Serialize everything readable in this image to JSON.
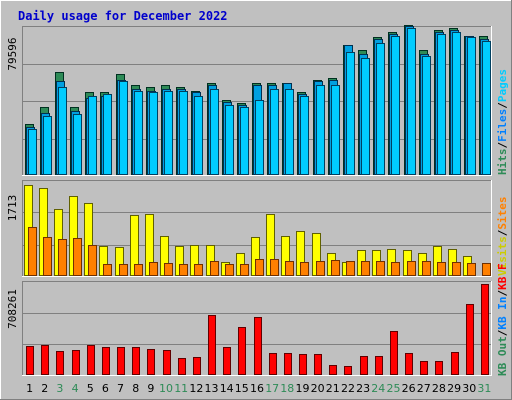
{
  "title": "Daily usage for December 2022",
  "colors": {
    "background": "#c0c0c0",
    "hits": "#00ccff",
    "files": "#00a0e0",
    "pages": "#2e8b57",
    "visits": "#ffff00",
    "sites": "#ff8000",
    "kbytes": "#ff0000",
    "title": "#0000cc",
    "weekday_label": "#000000",
    "weekend_label": "#2e8b57"
  },
  "legends": {
    "panel1": [
      {
        "text": "Hits",
        "color": "#2e8b57"
      },
      {
        "text": "/",
        "color": "#000000"
      },
      {
        "text": "Files",
        "color": "#0080ff"
      },
      {
        "text": "/",
        "color": "#000000"
      },
      {
        "text": "Pages",
        "color": "#00ccff"
      }
    ],
    "panel2": [
      {
        "text": "Visits",
        "color": "#cccc00"
      },
      {
        "text": "/",
        "color": "#000000"
      },
      {
        "text": "Sites",
        "color": "#ff8000"
      }
    ],
    "panel3": [
      {
        "text": "KB Out",
        "color": "#2e8b57"
      },
      {
        "text": "/",
        "color": "#000000"
      },
      {
        "text": "KB In",
        "color": "#0080ff"
      },
      {
        "text": "/",
        "color": "#000000"
      },
      {
        "text": "KB F",
        "color": "#ff0000"
      }
    ]
  },
  "chart_data": {
    "type": "bar",
    "title": "Daily usage for December 2022",
    "categories": [
      "1",
      "2",
      "3",
      "4",
      "5",
      "6",
      "7",
      "8",
      "9",
      "10",
      "11",
      "12",
      "13",
      "14",
      "15",
      "16",
      "17",
      "18",
      "19",
      "20",
      "21",
      "22",
      "23",
      "24",
      "25",
      "26",
      "27",
      "28",
      "29",
      "30",
      "31"
    ],
    "weekend_days": [
      3,
      4,
      10,
      11,
      17,
      18,
      24,
      25,
      31
    ],
    "panels": [
      {
        "name": "hits-files-pages",
        "ymax_label": "79596",
        "ymax": 79596,
        "series": [
          {
            "name": "Hits",
            "values": [
              28000,
              37000,
              56000,
              37000,
              45000,
              45000,
              55000,
              49000,
              48000,
              49000,
              48000,
              46000,
              50000,
              41000,
              39000,
              50000,
              50000,
              50000,
              45000,
              52000,
              53000,
              71000,
              68000,
              75000,
              78000,
              82000,
              68000,
              79000,
              80000,
              76000,
              76000
            ]
          },
          {
            "name": "Files",
            "values": [
              26000,
              34000,
              51000,
              35000,
              42000,
              43000,
              52000,
              47000,
              46000,
              47000,
              47000,
              45000,
              49000,
              40000,
              38000,
              49000,
              49000,
              50000,
              44000,
              51000,
              52000,
              71000,
              66000,
              74000,
              77000,
              81000,
              66000,
              78000,
              79000,
              76000,
              74000
            ]
          },
          {
            "name": "Pages",
            "values": [
              25000,
              32000,
              48000,
              33000,
              43000,
              44000,
              51000,
              46000,
              45000,
              46000,
              46000,
              43000,
              47000,
              38000,
              37000,
              41000,
              47000,
              47000,
              43000,
              49000,
              49000,
              67000,
              64000,
              72000,
              76000,
              80000,
              65000,
              77000,
              78000,
              75000,
              73000
            ]
          }
        ]
      },
      {
        "name": "visits-sites",
        "ymax_label": "1713",
        "ymax": 1713,
        "series": [
          {
            "name": "Visits",
            "values": [
              1680,
              1620,
              1240,
              1470,
              1350,
              550,
              540,
              1120,
              1140,
              740,
              560,
              580,
              570,
              260,
              420,
              710,
              1150,
              740,
              820,
              800,
              430,
              260,
              470,
              480,
              490,
              480,
              430,
              560,
              500,
              360,
              0
            ]
          },
          {
            "name": "Sites",
            "values": [
              900,
              710,
              680,
              700,
              580,
              230,
              230,
              220,
              260,
              240,
              230,
              230,
              270,
              230,
              230,
              320,
              310,
              270,
              260,
              280,
              300,
              280,
              270,
              270,
              260,
              280,
              270,
              260,
              260,
              240,
              240
            ]
          }
        ]
      },
      {
        "name": "kbytes",
        "ymax_label": "708261",
        "ymax": 708261,
        "series": [
          {
            "name": "KB F",
            "values": [
              227000,
              233000,
              189000,
              196000,
              233000,
              218000,
              218000,
              218000,
              204000,
              196000,
              129000,
              138000,
              468000,
              218000,
              373000,
              448000,
              171000,
              171000,
              162000,
              162000,
              79000,
              68000,
              144000,
              144000,
              346000,
              171000,
              112000,
              112000,
              181000,
              556000,
              708261
            ]
          }
        ]
      }
    ]
  }
}
